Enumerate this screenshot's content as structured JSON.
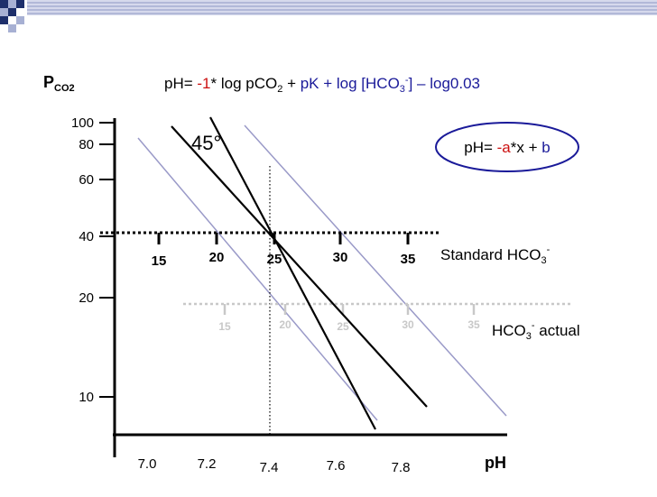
{
  "y_axis": {
    "title_main": "P",
    "title_sub": "CO2",
    "ticks": [
      "100",
      "80",
      "60",
      "40",
      "20",
      "10"
    ]
  },
  "x_axis": {
    "title": "pH",
    "ticks": [
      "7.0",
      "7.2",
      "7.4",
      "7.6",
      "7.8"
    ]
  },
  "formula": {
    "p1": "pH= ",
    "p2": "-1",
    "p3": "* log pCO",
    "p4": "2",
    "p5": " + ",
    "p6": "pK + log [HCO",
    "p7": "3",
    "p8": "-",
    "p9": "] – log0.03"
  },
  "linear_formula": {
    "p1": "pH= ",
    "p2": "-a",
    "p3": "*x + ",
    "p4": "b"
  },
  "angle_label": "45°",
  "standard_scale": {
    "ticks": [
      "15",
      "20",
      "25",
      "30",
      "35"
    ],
    "label_main": "Standard HCO",
    "label_sub": "3",
    "label_sup": "-"
  },
  "actual_scale": {
    "ticks": [
      "15",
      "20",
      "25",
      "30",
      "35"
    ],
    "label_main": "HCO",
    "label_sub": "3",
    "label_sup": "-",
    "label_tail": " actual"
  },
  "colors": {
    "red": "#cc1111",
    "blue": "#1a1a99",
    "lavender": "#9a9ac8",
    "actual_scale": "#c8c8c8",
    "ellipse": "#1a1a99"
  }
}
